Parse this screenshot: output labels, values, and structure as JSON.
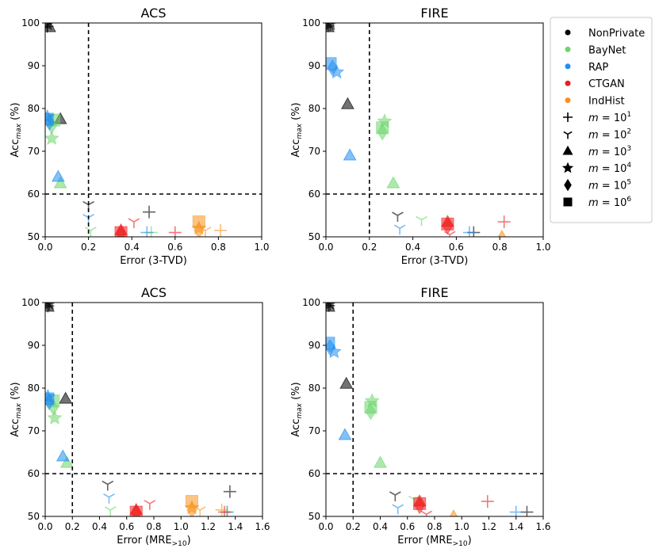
{
  "figure": {
    "legend": {
      "placement": "right",
      "methods": [
        {
          "label": "NonPrivate",
          "color": "#000000"
        },
        {
          "label": "BayNet",
          "color": "#6bd66b"
        },
        {
          "label": "RAP",
          "color": "#1f8ef1"
        },
        {
          "label": "CTGAN",
          "color": "#ee1c1c"
        },
        {
          "label": "IndHist",
          "color": "#f7931e"
        }
      ],
      "m_values": [
        {
          "label": "m = 10^1",
          "prefix": "m = 10",
          "sup": "1",
          "marker": "plus"
        },
        {
          "label": "m = 10^2",
          "prefix": "m = 10",
          "sup": "2",
          "marker": "tri"
        },
        {
          "label": "m = 10^3",
          "prefix": "m = 10",
          "sup": "3",
          "marker": "triangle"
        },
        {
          "label": "m = 10^4",
          "prefix": "m = 10",
          "sup": "4",
          "marker": "star"
        },
        {
          "label": "m = 10^5",
          "prefix": "m = 10",
          "sup": "5",
          "marker": "diamond"
        },
        {
          "label": "m = 10^6",
          "prefix": "m = 10",
          "sup": "6",
          "marker": "square"
        }
      ]
    }
  },
  "chart_data": [
    {
      "type": "scatter",
      "title": "ACS",
      "xlabel": "Error (3-TVD)",
      "ylabel": "Acc_max (%)",
      "xlim": [
        0,
        1.0
      ],
      "ylim": [
        50,
        100
      ],
      "xticks": [
        "0.0",
        "0.2",
        "0.4",
        "0.6",
        "0.8",
        "1.0"
      ],
      "yticks": [
        "50",
        "60",
        "70",
        "80",
        "90",
        "100"
      ],
      "threshold_x": 0.2,
      "threshold_y": 60,
      "points": [
        {
          "method": "NonPrivate",
          "m": 1,
          "x": 0.01,
          "y": 99.2
        },
        {
          "method": "NonPrivate",
          "m": 2,
          "x": 0.01,
          "y": 99.5
        },
        {
          "method": "NonPrivate",
          "m": 3,
          "x": 0.02,
          "y": 99.0
        },
        {
          "method": "NonPrivate",
          "m": 4,
          "x": 0.01,
          "y": 99.8
        },
        {
          "method": "NonPrivate",
          "m": 3,
          "x": 0.07,
          "y": 77.5
        },
        {
          "method": "NonPrivate",
          "m": 2,
          "x": 0.2,
          "y": 57.5
        },
        {
          "method": "NonPrivate",
          "m": 1,
          "x": 0.48,
          "y": 55.8
        },
        {
          "method": "BayNet",
          "m": 4,
          "x": 0.03,
          "y": 73.0
        },
        {
          "method": "BayNet",
          "m": 5,
          "x": 0.03,
          "y": 76.0
        },
        {
          "method": "BayNet",
          "m": 6,
          "x": 0.04,
          "y": 77.3
        },
        {
          "method": "BayNet",
          "m": 3,
          "x": 0.07,
          "y": 62.5
        },
        {
          "method": "BayNet",
          "m": 2,
          "x": 0.21,
          "y": 51.5
        },
        {
          "method": "BayNet",
          "m": 1,
          "x": 0.49,
          "y": 51.0
        },
        {
          "method": "RAP",
          "m": 6,
          "x": 0.01,
          "y": 77.5
        },
        {
          "method": "RAP",
          "m": 5,
          "x": 0.02,
          "y": 76.8
        },
        {
          "method": "RAP",
          "m": 4,
          "x": 0.01,
          "y": 78.0
        },
        {
          "method": "RAP",
          "m": 3,
          "x": 0.06,
          "y": 64.0
        },
        {
          "method": "RAP",
          "m": 2,
          "x": 0.2,
          "y": 54.5
        },
        {
          "method": "RAP",
          "m": 1,
          "x": 0.47,
          "y": 51.0
        },
        {
          "method": "CTGAN",
          "m": 6,
          "x": 0.35,
          "y": 51.0
        },
        {
          "method": "CTGAN",
          "m": 5,
          "x": 0.35,
          "y": 50.8
        },
        {
          "method": "CTGAN",
          "m": 3,
          "x": 0.35,
          "y": 51.5
        },
        {
          "method": "CTGAN",
          "m": 2,
          "x": 0.41,
          "y": 53.5
        },
        {
          "method": "CTGAN",
          "m": 1,
          "x": 0.6,
          "y": 51.0
        },
        {
          "method": "IndHist",
          "m": 6,
          "x": 0.71,
          "y": 53.5
        },
        {
          "method": "IndHist",
          "m": 5,
          "x": 0.71,
          "y": 51.5
        },
        {
          "method": "IndHist",
          "m": 4,
          "x": 0.71,
          "y": 52.0
        },
        {
          "method": "IndHist",
          "m": 2,
          "x": 0.74,
          "y": 51.5
        },
        {
          "method": "IndHist",
          "m": 1,
          "x": 0.81,
          "y": 51.5
        }
      ]
    },
    {
      "type": "scatter",
      "title": "FIRE",
      "xlabel": "Error (3-TVD)",
      "ylabel": "Acc_max (%)",
      "xlim": [
        0,
        1.0
      ],
      "ylim": [
        50,
        100
      ],
      "xticks": [
        "0.0",
        "0.2",
        "0.4",
        "0.6",
        "0.8",
        "1.0"
      ],
      "yticks": [
        "50",
        "60",
        "70",
        "80",
        "90",
        "100"
      ],
      "threshold_x": 0.2,
      "threshold_y": 60,
      "points": [
        {
          "method": "NonPrivate",
          "m": 1,
          "x": 0.01,
          "y": 99.3
        },
        {
          "method": "NonPrivate",
          "m": 2,
          "x": 0.02,
          "y": 99.6
        },
        {
          "method": "NonPrivate",
          "m": 3,
          "x": 0.01,
          "y": 99.0
        },
        {
          "method": "NonPrivate",
          "m": 4,
          "x": 0.02,
          "y": 99.8
        },
        {
          "method": "NonPrivate",
          "m": 3,
          "x": 0.1,
          "y": 81.0
        },
        {
          "method": "NonPrivate",
          "m": 2,
          "x": 0.33,
          "y": 55.0
        },
        {
          "method": "NonPrivate",
          "m": 1,
          "x": 0.68,
          "y": 51.0
        },
        {
          "method": "BayNet",
          "m": 4,
          "x": 0.27,
          "y": 77.0
        },
        {
          "method": "BayNet",
          "m": 5,
          "x": 0.26,
          "y": 74.5
        },
        {
          "method": "BayNet",
          "m": 6,
          "x": 0.26,
          "y": 75.5
        },
        {
          "method": "BayNet",
          "m": 3,
          "x": 0.31,
          "y": 62.5
        },
        {
          "method": "BayNet",
          "m": 2,
          "x": 0.44,
          "y": 54.0
        },
        {
          "method": "RAP",
          "m": 6,
          "x": 0.02,
          "y": 90.5
        },
        {
          "method": "RAP",
          "m": 5,
          "x": 0.03,
          "y": 89.5
        },
        {
          "method": "RAP",
          "m": 4,
          "x": 0.05,
          "y": 88.5
        },
        {
          "method": "RAP",
          "m": 3,
          "x": 0.11,
          "y": 69.0
        },
        {
          "method": "RAP",
          "m": 2,
          "x": 0.34,
          "y": 52.0
        },
        {
          "method": "RAP",
          "m": 1,
          "x": 0.66,
          "y": 51.0
        },
        {
          "method": "CTGAN",
          "m": 6,
          "x": 0.56,
          "y": 53.0
        },
        {
          "method": "CTGAN",
          "m": 5,
          "x": 0.56,
          "y": 52.5
        },
        {
          "method": "CTGAN",
          "m": 3,
          "x": 0.56,
          "y": 53.5
        },
        {
          "method": "CTGAN",
          "m": 2,
          "x": 0.57,
          "y": 50.5
        },
        {
          "method": "CTGAN",
          "m": 1,
          "x": 0.82,
          "y": 53.5
        },
        {
          "method": "IndHist",
          "m": 3,
          "x": 0.81,
          "y": 50.0
        }
      ]
    },
    {
      "type": "scatter",
      "title": "ACS",
      "xlabel": "Error (MRE>10)",
      "xlabel_main": "Error (MRE",
      "xlabel_sub": ">10",
      "xlabel_end": ")",
      "ylabel": "Acc_max (%)",
      "xlim": [
        0,
        1.6
      ],
      "ylim": [
        50,
        100
      ],
      "xticks": [
        "0.0",
        "0.2",
        "0.4",
        "0.6",
        "0.8",
        "1.0",
        "1.2",
        "1.4",
        "1.6"
      ],
      "yticks": [
        "50",
        "60",
        "70",
        "80",
        "90",
        "100"
      ],
      "threshold_x": 0.2,
      "threshold_y": 60,
      "points": [
        {
          "method": "NonPrivate",
          "m": 1,
          "x": 0.02,
          "y": 99.2
        },
        {
          "method": "NonPrivate",
          "m": 2,
          "x": 0.03,
          "y": 99.6
        },
        {
          "method": "NonPrivate",
          "m": 3,
          "x": 0.02,
          "y": 99.0
        },
        {
          "method": "NonPrivate",
          "m": 4,
          "x": 0.03,
          "y": 99.8
        },
        {
          "method": "NonPrivate",
          "m": 3,
          "x": 0.15,
          "y": 77.5
        },
        {
          "method": "NonPrivate",
          "m": 2,
          "x": 0.46,
          "y": 57.5
        },
        {
          "method": "NonPrivate",
          "m": 1,
          "x": 1.36,
          "y": 55.8
        },
        {
          "method": "BayNet",
          "m": 4,
          "x": 0.07,
          "y": 73.0
        },
        {
          "method": "BayNet",
          "m": 5,
          "x": 0.06,
          "y": 75.5
        },
        {
          "method": "BayNet",
          "m": 6,
          "x": 0.06,
          "y": 77.0
        },
        {
          "method": "BayNet",
          "m": 3,
          "x": 0.16,
          "y": 62.5
        },
        {
          "method": "BayNet",
          "m": 2,
          "x": 0.48,
          "y": 51.5
        },
        {
          "method": "BayNet",
          "m": 1,
          "x": 1.34,
          "y": 51.0
        },
        {
          "method": "RAP",
          "m": 6,
          "x": 0.02,
          "y": 77.5
        },
        {
          "method": "RAP",
          "m": 5,
          "x": 0.03,
          "y": 76.8
        },
        {
          "method": "RAP",
          "m": 4,
          "x": 0.02,
          "y": 78.0
        },
        {
          "method": "RAP",
          "m": 3,
          "x": 0.13,
          "y": 64.0
        },
        {
          "method": "RAP",
          "m": 2,
          "x": 0.47,
          "y": 54.5
        },
        {
          "method": "RAP",
          "m": 1,
          "x": 1.34,
          "y": 51.0
        },
        {
          "method": "CTGAN",
          "m": 6,
          "x": 0.67,
          "y": 51.0
        },
        {
          "method": "CTGAN",
          "m": 5,
          "x": 0.67,
          "y": 50.8
        },
        {
          "method": "CTGAN",
          "m": 3,
          "x": 0.67,
          "y": 51.5
        },
        {
          "method": "CTGAN",
          "m": 2,
          "x": 0.77,
          "y": 53.0
        },
        {
          "method": "CTGAN",
          "m": 1,
          "x": 1.32,
          "y": 51.0
        },
        {
          "method": "IndHist",
          "m": 6,
          "x": 1.08,
          "y": 53.5
        },
        {
          "method": "IndHist",
          "m": 5,
          "x": 1.08,
          "y": 51.5
        },
        {
          "method": "IndHist",
          "m": 4,
          "x": 1.08,
          "y": 52.0
        },
        {
          "method": "IndHist",
          "m": 2,
          "x": 1.14,
          "y": 51.5
        },
        {
          "method": "IndHist",
          "m": 1,
          "x": 1.3,
          "y": 51.5
        }
      ]
    },
    {
      "type": "scatter",
      "title": "FIRE",
      "xlabel": "Error (MRE>10)",
      "xlabel_main": "Error (MRE",
      "xlabel_sub": ">10",
      "xlabel_end": ")",
      "ylabel": "Acc_max (%)",
      "xlim": [
        0,
        1.6
      ],
      "ylim": [
        50,
        100
      ],
      "xticks": [
        "0.0",
        "0.2",
        "0.4",
        "0.6",
        "0.8",
        "1.0",
        "1.2",
        "1.4",
        "1.6"
      ],
      "yticks": [
        "50",
        "60",
        "70",
        "80",
        "90",
        "100"
      ],
      "threshold_x": 0.2,
      "threshold_y": 60,
      "points": [
        {
          "method": "NonPrivate",
          "m": 1,
          "x": 0.02,
          "y": 99.3
        },
        {
          "method": "NonPrivate",
          "m": 2,
          "x": 0.03,
          "y": 99.6
        },
        {
          "method": "NonPrivate",
          "m": 3,
          "x": 0.02,
          "y": 99.0
        },
        {
          "method": "NonPrivate",
          "m": 4,
          "x": 0.03,
          "y": 99.8
        },
        {
          "method": "NonPrivate",
          "m": 3,
          "x": 0.15,
          "y": 81.0
        },
        {
          "method": "NonPrivate",
          "m": 2,
          "x": 0.51,
          "y": 55.0
        },
        {
          "method": "NonPrivate",
          "m": 1,
          "x": 1.48,
          "y": 51.0
        },
        {
          "method": "BayNet",
          "m": 4,
          "x": 0.34,
          "y": 77.0
        },
        {
          "method": "BayNet",
          "m": 5,
          "x": 0.33,
          "y": 74.5
        },
        {
          "method": "BayNet",
          "m": 6,
          "x": 0.33,
          "y": 75.5
        },
        {
          "method": "BayNet",
          "m": 3,
          "x": 0.4,
          "y": 62.5
        },
        {
          "method": "BayNet",
          "m": 2,
          "x": 0.65,
          "y": 54.0
        },
        {
          "method": "RAP",
          "m": 6,
          "x": 0.02,
          "y": 90.5
        },
        {
          "method": "RAP",
          "m": 5,
          "x": 0.03,
          "y": 89.5
        },
        {
          "method": "RAP",
          "m": 4,
          "x": 0.06,
          "y": 88.5
        },
        {
          "method": "RAP",
          "m": 3,
          "x": 0.14,
          "y": 69.0
        },
        {
          "method": "RAP",
          "m": 2,
          "x": 0.53,
          "y": 52.0
        },
        {
          "method": "RAP",
          "m": 1,
          "x": 1.4,
          "y": 51.0
        },
        {
          "method": "CTGAN",
          "m": 6,
          "x": 0.69,
          "y": 53.0
        },
        {
          "method": "CTGAN",
          "m": 5,
          "x": 0.69,
          "y": 52.5
        },
        {
          "method": "CTGAN",
          "m": 3,
          "x": 0.69,
          "y": 53.5
        },
        {
          "method": "CTGAN",
          "m": 2,
          "x": 0.74,
          "y": 50.5
        },
        {
          "method": "CTGAN",
          "m": 1,
          "x": 1.19,
          "y": 53.5
        },
        {
          "method": "IndHist",
          "m": 3,
          "x": 0.94,
          "y": 50.0
        }
      ]
    }
  ]
}
